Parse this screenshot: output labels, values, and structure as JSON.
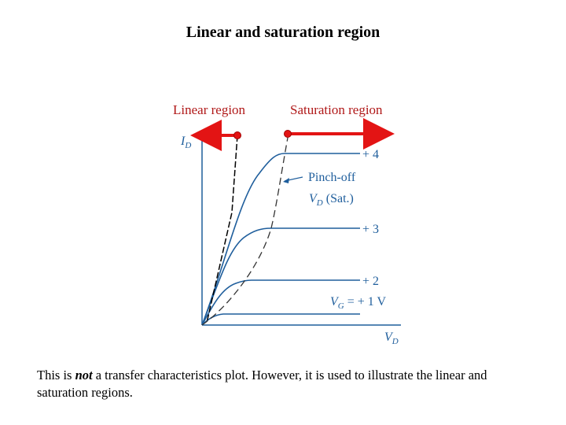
{
  "title": "Linear and saturation region",
  "regions": {
    "linear_label": "Linear region",
    "saturation_label": "Saturation region"
  },
  "plot": {
    "y_axis_var": "I",
    "y_axis_sub": "D",
    "x_axis_var": "V",
    "x_axis_sub": "D",
    "pinch_off": "Pinch-off",
    "vd_sat_var": "V",
    "vd_sat_sub": "D",
    "vd_sat_suffix": " (Sat.)",
    "gate_var": "V",
    "gate_sub": "G",
    "gate_eq": " = + 1 V",
    "curve_labels": [
      "+ 4",
      "+ 3",
      "+ 2"
    ]
  },
  "colors": {
    "curves": "#1f5e9c",
    "arrows": "#e31414",
    "region_labels": "#b01818"
  },
  "caption": {
    "before": "This is ",
    "emphasis": "not",
    "after": " a transfer characteristics plot. However, it is used to illustrate the linear and saturation regions."
  }
}
